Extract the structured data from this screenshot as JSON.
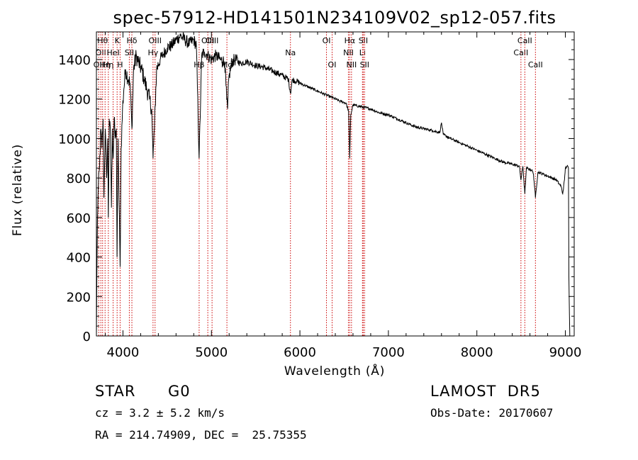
{
  "chart_data": {
    "type": "line",
    "title": "spec-57912-HD141501N234109V02_sp12-057.fits",
    "xlabel": "Wavelength (Å)",
    "ylabel": "Flux (relative)",
    "xlim": [
      3700,
      9100
    ],
    "ylim": [
      0,
      1540
    ],
    "x_ticks": [
      4000,
      5000,
      6000,
      7000,
      8000,
      9000
    ],
    "y_ticks": [
      0,
      200,
      400,
      600,
      800,
      1000,
      1200,
      1400
    ],
    "grid": false,
    "series": [
      {
        "x": [
          3700,
          3705,
          3712,
          3722,
          3735,
          3750,
          3762,
          3775,
          3785,
          3800,
          3815,
          3828,
          3835,
          3845,
          3860,
          3870,
          3880,
          3890,
          3900,
          3912,
          3925,
          3933,
          3945,
          3955,
          3968,
          3980,
          3995,
          4010,
          4030,
          4060,
          4080,
          4101,
          4120,
          4150,
          4180,
          4210,
          4240,
          4270,
          4300,
          4325,
          4340,
          4355,
          4380,
          4420,
          4460,
          4500,
          4550,
          4600,
          4650,
          4700,
          4750,
          4800,
          4830,
          4861,
          4890,
          4920,
          4960,
          5000,
          5050,
          5100,
          5150,
          5172,
          5183,
          5195,
          5230,
          5270,
          5330,
          5400,
          5500,
          5600,
          5700,
          5800,
          5870,
          5893,
          5915,
          5960,
          6050,
          6150,
          6250,
          6350,
          6450,
          6520,
          6550,
          6563,
          6575,
          6600,
          6700,
          6800,
          6900,
          7000,
          7100,
          7200,
          7300,
          7400,
          7500,
          7580,
          7600,
          7620,
          7700,
          7800,
          7900,
          8000,
          8100,
          8200,
          8300,
          8400,
          8480,
          8498,
          8520,
          8542,
          8560,
          8620,
          8640,
          8662,
          8690,
          8750,
          8800,
          8850,
          8900,
          8930,
          8950,
          8970,
          8990,
          9000,
          9020,
          9035,
          9040,
          9050,
          9060
        ],
        "y": [
          0,
          300,
          600,
          750,
          850,
          1050,
          950,
          1100,
          700,
          1050,
          800,
          1000,
          600,
          1100,
          1000,
          650,
          1050,
          900,
          1100,
          1000,
          1050,
          400,
          1000,
          700,
          350,
          950,
          1150,
          1250,
          1350,
          1300,
          1280,
          1050,
          1350,
          1420,
          1380,
          1350,
          1300,
          1250,
          1200,
          1150,
          900,
          1050,
          1350,
          1400,
          1430,
          1460,
          1470,
          1500,
          1520,
          1500,
          1480,
          1500,
          1470,
          900,
          1420,
          1440,
          1420,
          1400,
          1420,
          1400,
          1390,
          1200,
          1150,
          1300,
          1390,
          1400,
          1380,
          1390,
          1370,
          1360,
          1340,
          1320,
          1300,
          1230,
          1300,
          1290,
          1270,
          1250,
          1230,
          1210,
          1190,
          1180,
          1140,
          900,
          1120,
          1170,
          1160,
          1150,
          1130,
          1120,
          1100,
          1080,
          1060,
          1050,
          1040,
          1030,
          1080,
          1020,
          1000,
          980,
          960,
          940,
          920,
          900,
          880,
          870,
          860,
          790,
          860,
          720,
          850,
          840,
          820,
          700,
          830,
          820,
          810,
          800,
          790,
          770,
          760,
          720,
          790,
          850,
          860,
          850,
          300,
          0,
          0
        ]
      }
    ],
    "line_markers": [
      {
        "wavelength": 3726,
        "label": "OII",
        "row": 2
      },
      {
        "wavelength": 3750,
        "label": "OII",
        "row": 1
      },
      {
        "wavelength": 3770,
        "label": "Hθ",
        "row": 0
      },
      {
        "wavelength": 3798,
        "label": "Hη",
        "row": 2
      },
      {
        "wavelength": 3835,
        "label": "Hη",
        "row": 2
      },
      {
        "wavelength": 3889,
        "label": "HeI",
        "row": 1
      },
      {
        "wavelength": 3934,
        "label": "K",
        "row": 0
      },
      {
        "wavelength": 3968,
        "label": "H",
        "row": 2
      },
      {
        "wavelength": 4072,
        "label": "SII",
        "row": 1
      },
      {
        "wavelength": 4101,
        "label": "Hδ",
        "row": 0
      },
      {
        "wavelength": 4340,
        "label": "Hγ",
        "row": 1
      },
      {
        "wavelength": 4363,
        "label": "OIII",
        "row": 0
      },
      {
        "wavelength": 4861,
        "label": "Hβ",
        "row": 2
      },
      {
        "wavelength": 4959,
        "label": "OIII",
        "row": 0
      },
      {
        "wavelength": 5007,
        "label": "OIII",
        "row": 0
      },
      {
        "wavelength": 5175,
        "label": "Mg",
        "row": 2
      },
      {
        "wavelength": 5893,
        "label": "Na",
        "row": 1
      },
      {
        "wavelength": 6300,
        "label": "OI",
        "row": 0
      },
      {
        "wavelength": 6364,
        "label": "OI",
        "row": 2
      },
      {
        "wavelength": 6548,
        "label": "NII",
        "row": 1
      },
      {
        "wavelength": 6563,
        "label": "Hα",
        "row": 0
      },
      {
        "wavelength": 6583,
        "label": "NII",
        "row": 2
      },
      {
        "wavelength": 6707,
        "label": "Li",
        "row": 1
      },
      {
        "wavelength": 6716,
        "label": "SII",
        "row": 0
      },
      {
        "wavelength": 6731,
        "label": "SII",
        "row": 2
      },
      {
        "wavelength": 8498,
        "label": "CaII",
        "row": 1
      },
      {
        "wavelength": 8542,
        "label": "CaII",
        "row": 0
      },
      {
        "wavelength": 8662,
        "label": "CaII",
        "row": 2
      }
    ],
    "colors": {
      "spectrum": "#000000",
      "markers": "#cc0000",
      "axes": "#000000"
    }
  },
  "info": {
    "object_class": "STAR",
    "subclass": "G0",
    "survey": "LAMOST  DR5",
    "redshift": "cz = 3.2 ± 5.2 km/s",
    "obs_date": "Obs-Date: 20170607",
    "coords": "RA = 214.74909, DEC =  25.75355"
  }
}
